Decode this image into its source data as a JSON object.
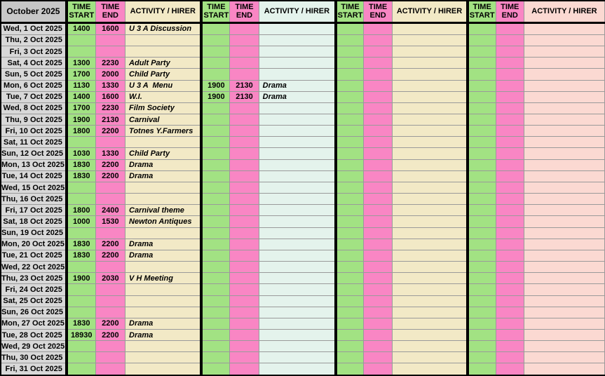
{
  "title": "October 2025",
  "columns": {
    "time_start": "TIME START",
    "time_end": "TIME END",
    "activity": "ACTIVITY / HIRER"
  },
  "groups_count": 4,
  "colors": {
    "month_header_bg": "#c7c7c7",
    "date_cell_bg": "#d8d8d8",
    "time_start_bg": "#a2e283",
    "time_end_bg": "#f986c4",
    "activity_group1_bg": "#f2e9c6",
    "activity_group2_bg": "#e4f3ec",
    "activity_group3_bg": "#f2e9c6",
    "activity_group4_bg": "#fbd9d2",
    "grid_line": "#9a9a9a",
    "heavy_border": "#000000"
  },
  "rows": [
    {
      "date": "Wed, 1 Oct 2025",
      "g1": [
        "1400",
        "1600",
        "U 3 A Discussion"
      ]
    },
    {
      "date": "Thu, 2 Oct 2025"
    },
    {
      "date": "Fri, 3 Oct 2025"
    },
    {
      "date": "Sat, 4 Oct 2025",
      "g1": [
        "1300",
        "2230",
        "Adult Party"
      ]
    },
    {
      "date": "Sun, 5 Oct 2025",
      "g1": [
        "1700",
        "2000",
        "Child Party"
      ]
    },
    {
      "date": "Mon, 6 Oct 2025",
      "g1": [
        "1130",
        "1330",
        "U 3 A  Menu"
      ],
      "g2": [
        "1900",
        "2130",
        "Drama"
      ]
    },
    {
      "date": "Tue, 7 Oct 2025",
      "g1": [
        "1400",
        "1600",
        "W.I."
      ],
      "g2": [
        "1900",
        "2130",
        "Drama"
      ]
    },
    {
      "date": "Wed, 8 Oct 2025",
      "g1": [
        "1700",
        "2230",
        "Film Society"
      ]
    },
    {
      "date": "Thu, 9 Oct 2025",
      "g1": [
        "1900",
        "2130",
        "Carnival"
      ]
    },
    {
      "date": "Fri, 10 Oct 2025",
      "g1": [
        "1800",
        "2200",
        "Totnes Y.Farmers"
      ]
    },
    {
      "date": "Sat, 11 Oct 2025"
    },
    {
      "date": "Sun, 12 Oct 2025",
      "g1": [
        "1030",
        "1330",
        "Child Party"
      ]
    },
    {
      "date": "Mon, 13 Oct 2025",
      "g1": [
        "1830",
        "2200",
        "Drama"
      ]
    },
    {
      "date": "Tue, 14 Oct 2025",
      "g1": [
        "1830",
        "2200",
        "Drama"
      ]
    },
    {
      "date": "Wed, 15 Oct 2025"
    },
    {
      "date": "Thu, 16 Oct 2025"
    },
    {
      "date": "Fri, 17 Oct 2025",
      "g1": [
        "1800",
        "2400",
        "Carnival theme"
      ]
    },
    {
      "date": "Sat, 18 Oct 2025",
      "g1": [
        "1000",
        "1530",
        "Newton Antiques"
      ]
    },
    {
      "date": "Sun, 19 Oct 2025"
    },
    {
      "date": "Mon, 20 Oct 2025",
      "g1": [
        "1830",
        "2200",
        "Drama"
      ]
    },
    {
      "date": "Tue, 21 Oct 2025",
      "g1": [
        "1830",
        "2200",
        "Drama"
      ]
    },
    {
      "date": "Wed, 22 Oct 2025"
    },
    {
      "date": "Thu, 23 Oct 2025",
      "g1": [
        "1900",
        "2030",
        "V H Meeting"
      ]
    },
    {
      "date": "Fri, 24 Oct 2025"
    },
    {
      "date": "Sat, 25 Oct 2025"
    },
    {
      "date": "Sun, 26 Oct 2025"
    },
    {
      "date": "Mon, 27 Oct 2025",
      "g1": [
        "1830",
        "2200",
        "Drama"
      ]
    },
    {
      "date": "Tue, 28 Oct 2025",
      "g1": [
        "18930",
        "2200",
        "Drama"
      ]
    },
    {
      "date": "Wed, 29 Oct 2025"
    },
    {
      "date": "Thu, 30 Oct 2025"
    },
    {
      "date": "Fri, 31 Oct 2025"
    }
  ]
}
